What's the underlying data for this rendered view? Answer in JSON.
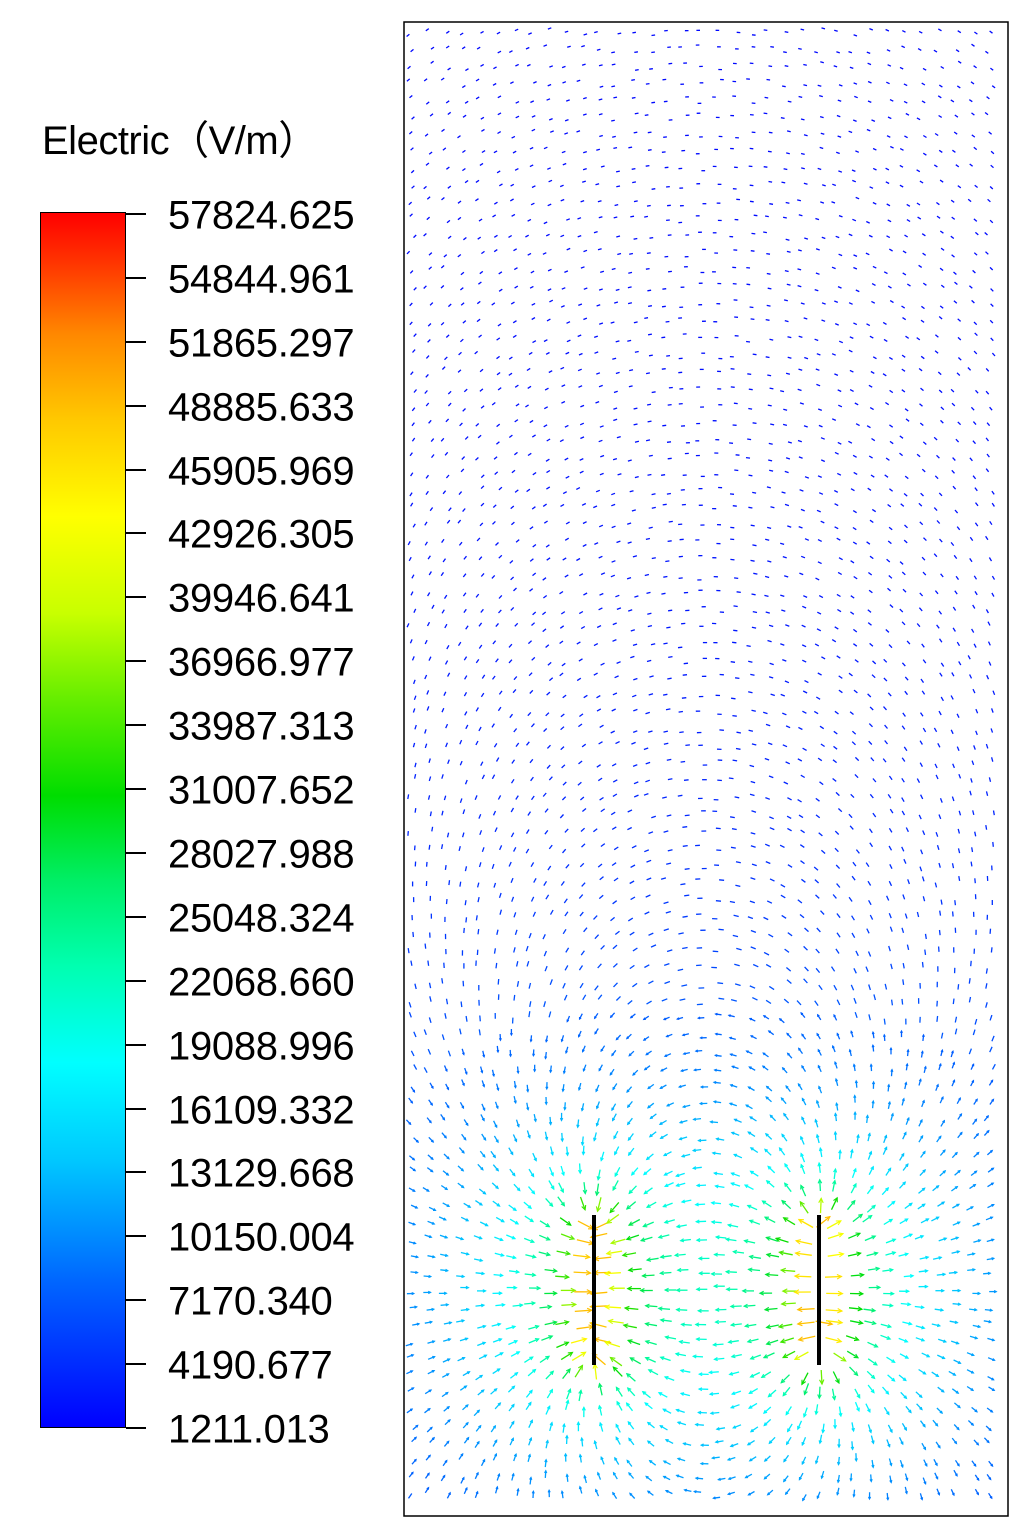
{
  "legend": {
    "title": "Electric（V/m）",
    "labels": [
      "57824.625",
      "54844.961",
      "51865.297",
      "48885.633",
      "45905.969",
      "42926.305",
      "39946.641",
      "36966.977",
      "33987.313",
      "31007.652",
      "28027.988",
      "25048.324",
      "22068.660",
      "19088.996",
      "16109.332",
      "13129.668",
      "10150.004",
      "7170.340",
      "4190.677",
      "1211.013"
    ],
    "min": 1211.013,
    "max": 57824.625
  },
  "colors": {
    "scale": [
      "#0000ff",
      "#0066ff",
      "#00c8ff",
      "#00ffff",
      "#00ffb0",
      "#00ee66",
      "#00dd00",
      "#66ee00",
      "#c8ff00",
      "#ffff00",
      "#ffc800",
      "#ff8800",
      "#ff3300",
      "#ff0000"
    ],
    "frame": "#000000",
    "plates": "#000000"
  }
}
